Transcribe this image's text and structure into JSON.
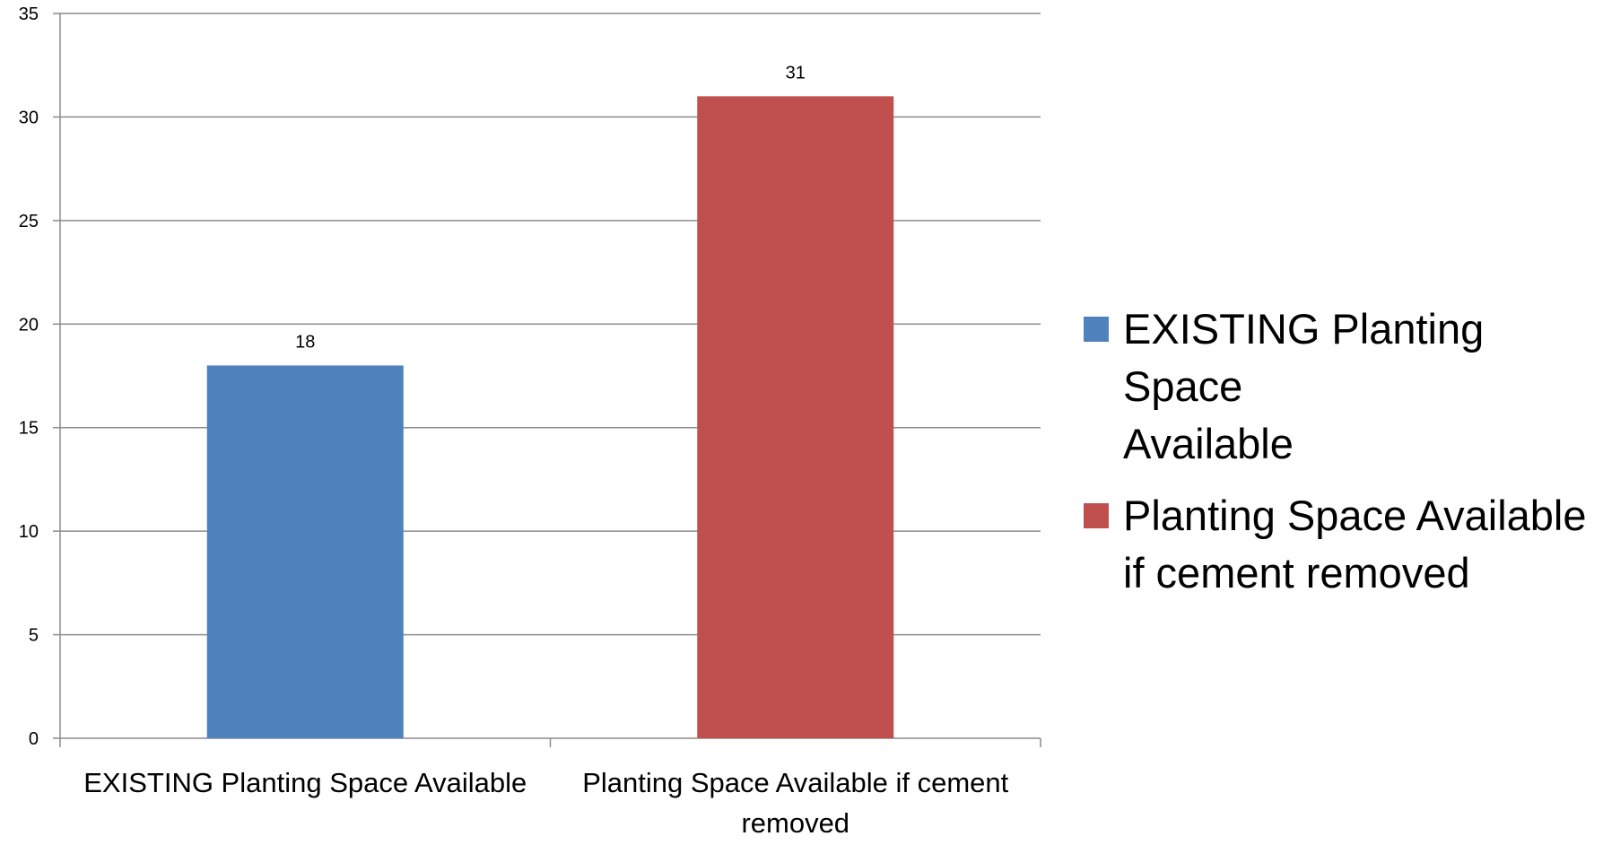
{
  "chart_data": {
    "type": "bar",
    "categories": [
      "EXISTING Planting Space Available",
      "Planting Space Available if cement removed"
    ],
    "category_label_lines": [
      [
        "EXISTING Planting Space Available"
      ],
      [
        "Planting Space Available if cement",
        "removed"
      ]
    ],
    "series": [
      {
        "name": "EXISTING Planting Space Available",
        "category_index": 0,
        "value": 18,
        "color": "#4F81BD"
      },
      {
        "name": "Planting Space Available if cement removed",
        "category_index": 1,
        "value": 31,
        "color": "#C0504D"
      }
    ],
    "data_labels": [
      "18",
      "31"
    ],
    "ylim": [
      0,
      35
    ],
    "y_ticks": [
      0,
      5,
      10,
      15,
      20,
      25,
      30,
      35
    ],
    "y_tick_labels": [
      "0",
      "5",
      "10",
      "15",
      "20",
      "25",
      "30",
      "35"
    ],
    "grid": true,
    "legend_position": "right",
    "legend": [
      {
        "label_lines": [
          "EXISTING Planting Space",
          "Available"
        ],
        "color": "#4F81BD"
      },
      {
        "label_lines": [
          "Planting Space Available",
          "if cement removed"
        ],
        "color": "#C0504D"
      }
    ],
    "title": "",
    "xlabel": "",
    "ylabel": ""
  }
}
